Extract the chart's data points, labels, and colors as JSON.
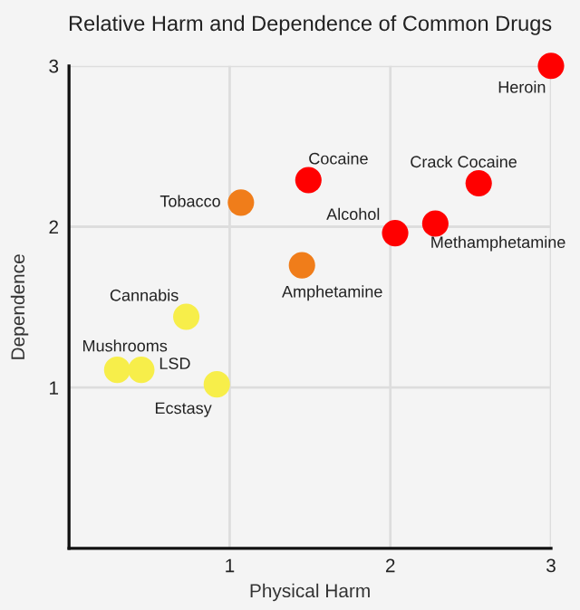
{
  "chart_data": {
    "type": "scatter",
    "title": "Relative Harm and Dependence of Common Drugs",
    "xlabel": "Physical Harm",
    "ylabel": "Dependence",
    "x": [
      3.0,
      1.49,
      2.55,
      1.07,
      2.03,
      2.28,
      1.45,
      0.73,
      0.3,
      0.45,
      0.92
    ],
    "series": [
      {
        "colors": [
          "#ff0000",
          "#ff0000",
          "#ff0000",
          "#f07d1a",
          "#ff0000",
          "#ff0000",
          "#f07d1a",
          "#f7ee4a",
          "#f7ee4a",
          "#f7ee4a",
          "#f7ee4a"
        ],
        "values": [
          3.0,
          2.29,
          2.27,
          2.15,
          1.96,
          2.02,
          1.76,
          1.44,
          1.11,
          1.11,
          1.02
        ]
      }
    ],
    "annotations": [
      {
        "text": "Heroin",
        "x": 3.0,
        "y": 3.0
      },
      {
        "text": "Cocaine",
        "x": 1.49,
        "y": 2.29
      },
      {
        "text": "Crack Cocaine",
        "x": 2.55,
        "y": 2.27
      },
      {
        "text": "Tobacco",
        "x": 1.07,
        "y": 2.15
      },
      {
        "text": "Alcohol",
        "x": 2.03,
        "y": 1.96
      },
      {
        "text": "Methamphetamine",
        "x": 2.28,
        "y": 2.02
      },
      {
        "text": "Amphetamine",
        "x": 1.45,
        "y": 1.76
      },
      {
        "text": "Cannabis",
        "x": 0.73,
        "y": 1.44
      },
      {
        "text": "Mushrooms",
        "x": 0.3,
        "y": 1.11
      },
      {
        "text": "LSD",
        "x": 0.45,
        "y": 1.11
      },
      {
        "text": "Ecstasy",
        "x": 0.92,
        "y": 1.02
      }
    ],
    "xlim": [
      0,
      3
    ],
    "ylim": [
      0,
      3
    ],
    "xticks": [
      1,
      2,
      3
    ],
    "yticks": [
      1,
      2,
      3
    ],
    "grid": true,
    "marker": "circle"
  }
}
